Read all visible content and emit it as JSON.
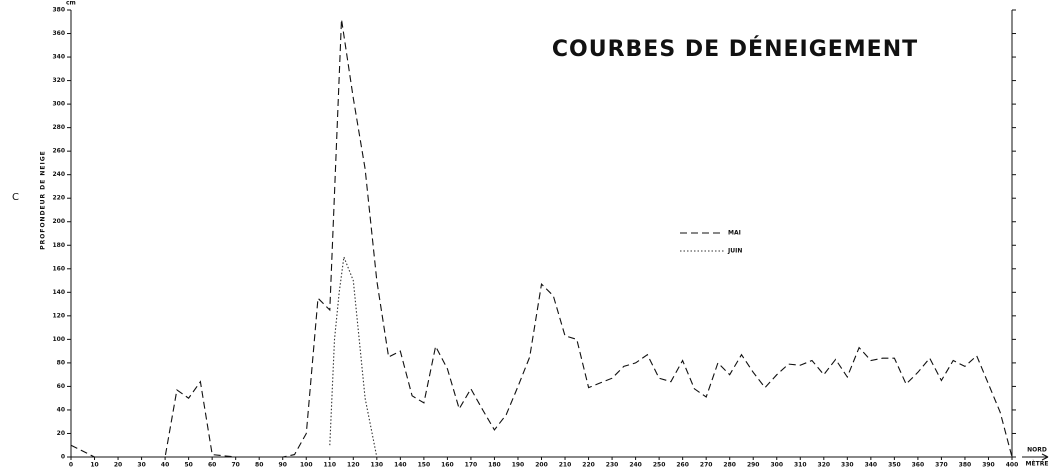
{
  "chart_data": {
    "type": "line",
    "title": "COURBES DE DÉNEIGEMENT",
    "corner_label": "C",
    "y_unit": "cm",
    "y_label": "PROFONDEUR DE NEIGE",
    "x_label": "MÈTRE",
    "direction_label": "NORD",
    "xlim": [
      0,
      400
    ],
    "ylim": [
      0,
      380
    ],
    "xticks": [
      0,
      10,
      20,
      30,
      40,
      50,
      60,
      70,
      80,
      90,
      100,
      110,
      120,
      130,
      140,
      150,
      160,
      170,
      180,
      190,
      200,
      210,
      220,
      230,
      240,
      250,
      260,
      270,
      280,
      290,
      300,
      310,
      320,
      330,
      340,
      350,
      360,
      370,
      380,
      390,
      400
    ],
    "yticks": [
      0,
      20,
      40,
      60,
      80,
      100,
      120,
      140,
      160,
      180,
      200,
      220,
      240,
      260,
      280,
      300,
      320,
      340,
      360,
      380
    ],
    "legend": "center-right",
    "series": [
      {
        "name": "MAI",
        "color": "#111",
        "dash": "7,4",
        "x": [
          0,
          10,
          20,
          30,
          40,
          45,
          50,
          55,
          60,
          70,
          80,
          90,
          95,
          100,
          105,
          110,
          115,
          120,
          125,
          130,
          135,
          140,
          145,
          150,
          155,
          160,
          165,
          170,
          175,
          180,
          185,
          190,
          195,
          200,
          205,
          210,
          215,
          220,
          225,
          230,
          235,
          240,
          245,
          250,
          255,
          260,
          265,
          270,
          275,
          280,
          285,
          290,
          295,
          300,
          305,
          310,
          315,
          320,
          325,
          330,
          335,
          340,
          345,
          350,
          355,
          360,
          365,
          370,
          375,
          380,
          385,
          390,
          395,
          400
        ],
        "values": [
          10,
          0,
          0,
          0,
          0,
          57,
          50,
          64,
          2,
          0,
          0,
          0,
          2,
          20,
          135,
          125,
          372,
          305,
          245,
          150,
          85,
          90,
          52,
          46,
          94,
          75,
          41,
          58,
          40,
          23,
          36,
          60,
          85,
          147,
          137,
          103,
          100,
          59,
          63,
          67,
          77,
          80,
          87,
          67,
          64,
          82,
          58,
          51,
          80,
          70,
          87,
          72,
          59,
          70,
          79,
          78,
          82,
          70,
          83,
          68,
          93,
          82,
          84,
          84,
          62,
          72,
          84,
          65,
          82,
          77,
          86,
          62,
          38,
          0
        ]
      },
      {
        "name": "JUIN",
        "color": "#333",
        "dash": "1.5,2",
        "x": [
          110,
          112,
          114,
          116,
          120,
          125,
          130
        ],
        "values": [
          10,
          100,
          140,
          170,
          150,
          50,
          0
        ]
      }
    ]
  }
}
